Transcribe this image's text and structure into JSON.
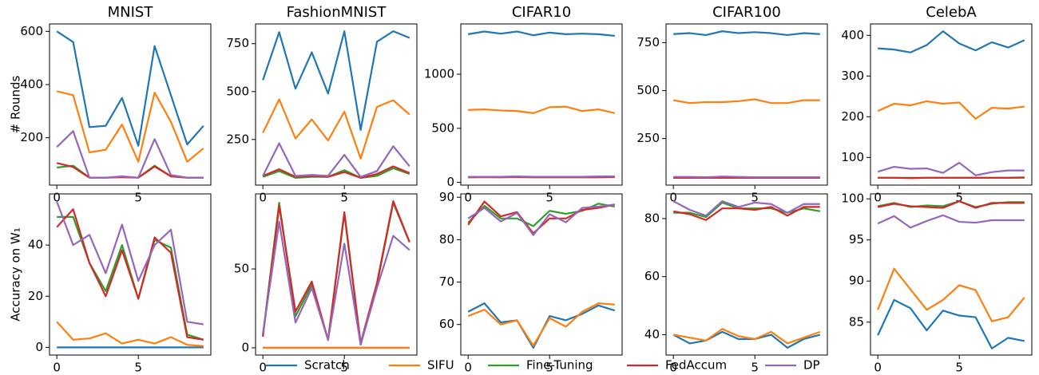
{
  "chart_data": [
    {
      "type": "line",
      "title": "MNIST",
      "y_label": "# Rounds",
      "x": [
        0,
        1,
        2,
        3,
        4,
        5,
        6,
        7,
        8,
        9
      ],
      "xlim": [
        -0.45,
        9.45
      ],
      "xticks": [
        0,
        5
      ],
      "ylim": [
        22,
        628
      ],
      "yticks": [
        200,
        400,
        600
      ],
      "series": [
        {
          "name": "Scratch",
          "color": "#1f77b4",
          "values": [
            600,
            560,
            240,
            245,
            350,
            170,
            545,
            360,
            175,
            245
          ]
        },
        {
          "name": "SIFU",
          "color": "#ff7f0e",
          "values": [
            375,
            360,
            145,
            155,
            250,
            110,
            370,
            260,
            110,
            160
          ]
        },
        {
          "name": "Fine-Tuning",
          "color": "#2ca02c",
          "values": [
            88,
            95,
            50,
            50,
            52,
            50,
            95,
            55,
            50,
            50
          ]
        },
        {
          "name": "FedAccum",
          "color": "#d62728",
          "values": [
            105,
            90,
            50,
            50,
            52,
            50,
            92,
            55,
            50,
            50
          ]
        },
        {
          "name": "DP",
          "color": "#9467bd",
          "values": [
            165,
            225,
            50,
            50,
            55,
            50,
            195,
            60,
            50,
            50
          ]
        }
      ]
    },
    {
      "type": "line",
      "title": "FashionMNIST",
      "x": [
        0,
        1,
        2,
        3,
        4,
        5,
        6,
        7,
        8,
        9
      ],
      "xlim": [
        -0.45,
        9.45
      ],
      "xticks": [
        0,
        5
      ],
      "ylim": [
        12,
        853
      ],
      "yticks": [
        250,
        500,
        750
      ],
      "series": [
        {
          "name": "Scratch",
          "color": "#1f77b4",
          "values": [
            560,
            810,
            515,
            705,
            490,
            815,
            300,
            760,
            815,
            780
          ]
        },
        {
          "name": "SIFU",
          "color": "#ff7f0e",
          "values": [
            285,
            460,
            255,
            355,
            245,
            395,
            150,
            420,
            455,
            380
          ]
        },
        {
          "name": "Fine-Tuning",
          "color": "#2ca02c",
          "values": [
            55,
            85,
            50,
            55,
            55,
            90,
            50,
            60,
            100,
            70
          ]
        },
        {
          "name": "FedAccum",
          "color": "#d62728",
          "values": [
            60,
            95,
            55,
            60,
            55,
            80,
            50,
            70,
            110,
            75
          ]
        },
        {
          "name": "DP",
          "color": "#9467bd",
          "values": [
            60,
            230,
            60,
            65,
            60,
            170,
            55,
            85,
            215,
            110
          ]
        }
      ]
    },
    {
      "type": "line",
      "title": "CIFAR10",
      "x": [
        0,
        1,
        2,
        3,
        4,
        5,
        6,
        7,
        8,
        9
      ],
      "xlim": [
        -0.45,
        9.45
      ],
      "xticks": [
        0,
        5
      ],
      "ylim": [
        -25,
        1465
      ],
      "yticks": [
        0,
        500,
        1000
      ],
      "series": [
        {
          "name": "Scratch",
          "color": "#1f77b4",
          "values": [
            1370,
            1395,
            1375,
            1395,
            1360,
            1385,
            1370,
            1375,
            1370,
            1355
          ]
        },
        {
          "name": "SIFU",
          "color": "#ff7f0e",
          "values": [
            670,
            675,
            665,
            660,
            640,
            695,
            700,
            660,
            675,
            640
          ]
        },
        {
          "name": "Fine-Tuning",
          "color": "#2ca02c",
          "values": [
            48,
            50,
            48,
            50,
            48,
            48,
            48,
            48,
            48,
            50
          ]
        },
        {
          "name": "FedAccum",
          "color": "#d62728",
          "values": [
            48,
            48,
            48,
            49,
            48,
            48,
            48,
            48,
            48,
            49
          ]
        },
        {
          "name": "DP",
          "color": "#9467bd",
          "values": [
            52,
            52,
            52,
            55,
            52,
            52,
            52,
            52,
            55,
            55
          ]
        }
      ]
    },
    {
      "type": "line",
      "title": "CIFAR100",
      "x": [
        0,
        1,
        2,
        3,
        4,
        5,
        6,
        7,
        8,
        9
      ],
      "xlim": [
        -0.45,
        9.45
      ],
      "xticks": [
        0,
        5
      ],
      "ylim": [
        7,
        848
      ],
      "yticks": [
        250,
        500,
        750
      ],
      "series": [
        {
          "name": "Scratch",
          "color": "#1f77b4",
          "values": [
            795,
            800,
            790,
            810,
            800,
            805,
            800,
            790,
            800,
            795
          ]
        },
        {
          "name": "SIFU",
          "color": "#ff7f0e",
          "values": [
            450,
            435,
            440,
            440,
            445,
            455,
            435,
            435,
            450,
            450
          ]
        },
        {
          "name": "Fine-Tuning",
          "color": "#2ca02c",
          "values": [
            45,
            45,
            45,
            46,
            45,
            45,
            45,
            45,
            45,
            45
          ]
        },
        {
          "name": "FedAccum",
          "color": "#d62728",
          "values": [
            45,
            45,
            45,
            45,
            45,
            45,
            45,
            45,
            45,
            45
          ]
        },
        {
          "name": "DP",
          "color": "#9467bd",
          "values": [
            50,
            50,
            48,
            52,
            50,
            48,
            48,
            48,
            48,
            48
          ]
        }
      ]
    },
    {
      "type": "line",
      "title": "CelebA",
      "x": [
        0,
        1,
        2,
        3,
        4,
        5,
        6,
        7,
        8,
        9
      ],
      "xlim": [
        -0.45,
        9.45
      ],
      "xticks": [
        0,
        5
      ],
      "ylim": [
        32,
        428
      ],
      "yticks": [
        100,
        200,
        300,
        400
      ],
      "series": [
        {
          "name": "Scratch",
          "color": "#1f77b4",
          "values": [
            368,
            365,
            358,
            376,
            410,
            380,
            363,
            383,
            370,
            388
          ]
        },
        {
          "name": "SIFU",
          "color": "#ff7f0e",
          "values": [
            214,
            232,
            228,
            238,
            232,
            235,
            195,
            222,
            220,
            225
          ]
        },
        {
          "name": "Fine-Tuning",
          "color": "#2ca02c",
          "values": [
            50,
            50,
            50,
            50,
            50,
            50,
            50,
            50,
            50,
            50
          ]
        },
        {
          "name": "FedAccum",
          "color": "#d62728",
          "values": [
            50,
            50,
            49,
            50,
            50,
            50,
            50,
            50,
            50,
            51
          ]
        },
        {
          "name": "DP",
          "color": "#9467bd",
          "values": [
            65,
            77,
            72,
            73,
            62,
            87,
            56,
            64,
            68,
            68
          ]
        }
      ]
    },
    {
      "type": "line",
      "y_label": "Accuracy on W₁",
      "x": [
        0,
        1,
        2,
        3,
        4,
        5,
        6,
        7,
        8,
        9
      ],
      "xlim": [
        -0.45,
        9.45
      ],
      "xticks": [
        0,
        5
      ],
      "ylim": [
        -3,
        60
      ],
      "yticks": [
        0,
        20,
        40
      ],
      "series": [
        {
          "name": "Scratch",
          "color": "#1f77b4",
          "values": [
            0,
            0,
            0,
            0,
            0,
            0,
            0,
            0,
            0,
            0
          ]
        },
        {
          "name": "SIFU",
          "color": "#ff7f0e",
          "values": [
            10,
            3,
            3.5,
            5.5,
            1.5,
            3,
            1.5,
            4,
            1,
            0.5
          ]
        },
        {
          "name": "Fine-Tuning",
          "color": "#2ca02c",
          "values": [
            51,
            51,
            33,
            22,
            40,
            19,
            42,
            39,
            5,
            3
          ]
        },
        {
          "name": "FedAccum",
          "color": "#d62728",
          "values": [
            47,
            54,
            33,
            20,
            38,
            19,
            43,
            37,
            4,
            3
          ]
        },
        {
          "name": "DP",
          "color": "#9467bd",
          "values": [
            57,
            40,
            44,
            29,
            48,
            26,
            40,
            46,
            10,
            9
          ]
        }
      ]
    },
    {
      "type": "line",
      "x": [
        0,
        1,
        2,
        3,
        4,
        5,
        6,
        7,
        8,
        9
      ],
      "xlim": [
        -0.45,
        9.45
      ],
      "xticks": [
        0,
        5
      ],
      "ylim": [
        -4.6,
        97.6
      ],
      "yticks": [
        0,
        50
      ],
      "series": [
        {
          "name": "Scratch",
          "color": "#1f77b4",
          "values": [
            0,
            0,
            0,
            0,
            0,
            0,
            0,
            0,
            0,
            0
          ]
        },
        {
          "name": "SIFU",
          "color": "#ff7f0e",
          "values": [
            0,
            0,
            0,
            0,
            0,
            0,
            0,
            0,
            0,
            0
          ]
        },
        {
          "name": "Fine-Tuning",
          "color": "#2ca02c",
          "values": [
            8,
            92,
            20,
            40,
            5,
            85,
            2,
            40,
            92,
            67
          ]
        },
        {
          "name": "FedAccum",
          "color": "#d62728",
          "values": [
            7,
            90,
            23,
            42,
            5,
            86,
            3,
            41,
            93,
            67
          ]
        },
        {
          "name": "DP",
          "color": "#9467bd",
          "values": [
            9,
            80,
            16,
            38,
            5,
            66,
            2,
            38,
            71,
            62
          ]
        }
      ]
    },
    {
      "type": "line",
      "x": [
        0,
        1,
        2,
        3,
        4,
        5,
        6,
        7,
        8,
        9
      ],
      "xlim": [
        -0.45,
        9.45
      ],
      "xticks": [
        0,
        5
      ],
      "ylim": [
        52.8,
        90.8
      ],
      "yticks": [
        60,
        70,
        80,
        90
      ],
      "series": [
        {
          "name": "Scratch",
          "color": "#1f77b4",
          "values": [
            63,
            65,
            60.5,
            61,
            54.5,
            62,
            61,
            62.5,
            64.5,
            63.3
          ]
        },
        {
          "name": "SIFU",
          "color": "#ff7f0e",
          "values": [
            62,
            63.5,
            60,
            61,
            55,
            61.5,
            59.5,
            63,
            65,
            64.7
          ]
        },
        {
          "name": "Fine-Tuning",
          "color": "#2ca02c",
          "values": [
            84,
            88,
            85,
            85,
            83.2,
            86.8,
            86.1,
            86.8,
            88.5,
            87.8
          ]
        },
        {
          "name": "FedAccum",
          "color": "#d62728",
          "values": [
            83.5,
            89,
            85.5,
            86.5,
            81.5,
            85,
            85,
            87,
            87.5,
            88.3
          ]
        },
        {
          "name": "DP",
          "color": "#9467bd",
          "values": [
            85,
            87.5,
            84.3,
            86.3,
            81.1,
            86,
            84.1,
            87.5,
            87.8,
            88.3
          ]
        }
      ]
    },
    {
      "type": "line",
      "x": [
        0,
        1,
        2,
        3,
        4,
        5,
        6,
        7,
        8,
        9
      ],
      "xlim": [
        -0.45,
        9.45
      ],
      "xticks": [
        0,
        5
      ],
      "ylim": [
        33,
        88.5
      ],
      "yticks": [
        40,
        60,
        80
      ],
      "series": [
        {
          "name": "Scratch",
          "color": "#1f77b4",
          "values": [
            40,
            37,
            38,
            41,
            38.5,
            38.5,
            40,
            35.5,
            38.5,
            40
          ]
        },
        {
          "name": "SIFU",
          "color": "#ff7f0e",
          "values": [
            40,
            39,
            38,
            42,
            39.5,
            38.5,
            41,
            37,
            39,
            41
          ]
        },
        {
          "name": "Fine-Tuning",
          "color": "#2ca02c",
          "values": [
            82,
            82,
            80.5,
            85.5,
            83.5,
            83.5,
            83.5,
            82,
            83.5,
            82.5
          ]
        },
        {
          "name": "FedAccum",
          "color": "#d62728",
          "values": [
            82.5,
            81.5,
            79.5,
            83.5,
            83.5,
            83,
            84,
            81,
            84,
            84
          ]
        },
        {
          "name": "DP",
          "color": "#9467bd",
          "values": [
            86,
            83,
            81,
            86,
            84,
            85.5,
            85,
            82,
            85,
            85
          ]
        }
      ]
    },
    {
      "type": "line",
      "x": [
        0,
        1,
        2,
        3,
        4,
        5,
        6,
        7,
        8,
        9
      ],
      "xlim": [
        -0.45,
        9.45
      ],
      "xticks": [
        0,
        5
      ],
      "ylim": [
        81,
        100.6
      ],
      "yticks": [
        85,
        90,
        95,
        100
      ],
      "series": [
        {
          "name": "Scratch",
          "color": "#1f77b4",
          "values": [
            83.4,
            87.7,
            86.7,
            84,
            86.4,
            85.8,
            85.6,
            81.8,
            83.1,
            82.7
          ]
        },
        {
          "name": "SIFU",
          "color": "#ff7f0e",
          "values": [
            86.5,
            91.5,
            89,
            86.5,
            87.7,
            89.5,
            88.9,
            85.1,
            85.6,
            88
          ]
        },
        {
          "name": "Fine-Tuning",
          "color": "#2ca02c",
          "values": [
            99.1,
            99.5,
            99,
            99.2,
            99.1,
            99.7,
            99,
            99.4,
            99.6,
            99.6
          ]
        },
        {
          "name": "FedAccum",
          "color": "#d62728",
          "values": [
            99,
            99.4,
            99.1,
            99,
            98.9,
            99.7,
            98.9,
            99.5,
            99.5,
            99.5
          ]
        },
        {
          "name": "DP",
          "color": "#9467bd",
          "values": [
            97,
            97.9,
            96.5,
            97.3,
            98,
            97.2,
            97.1,
            97.4,
            97.4,
            97.4
          ]
        }
      ]
    }
  ]
}
